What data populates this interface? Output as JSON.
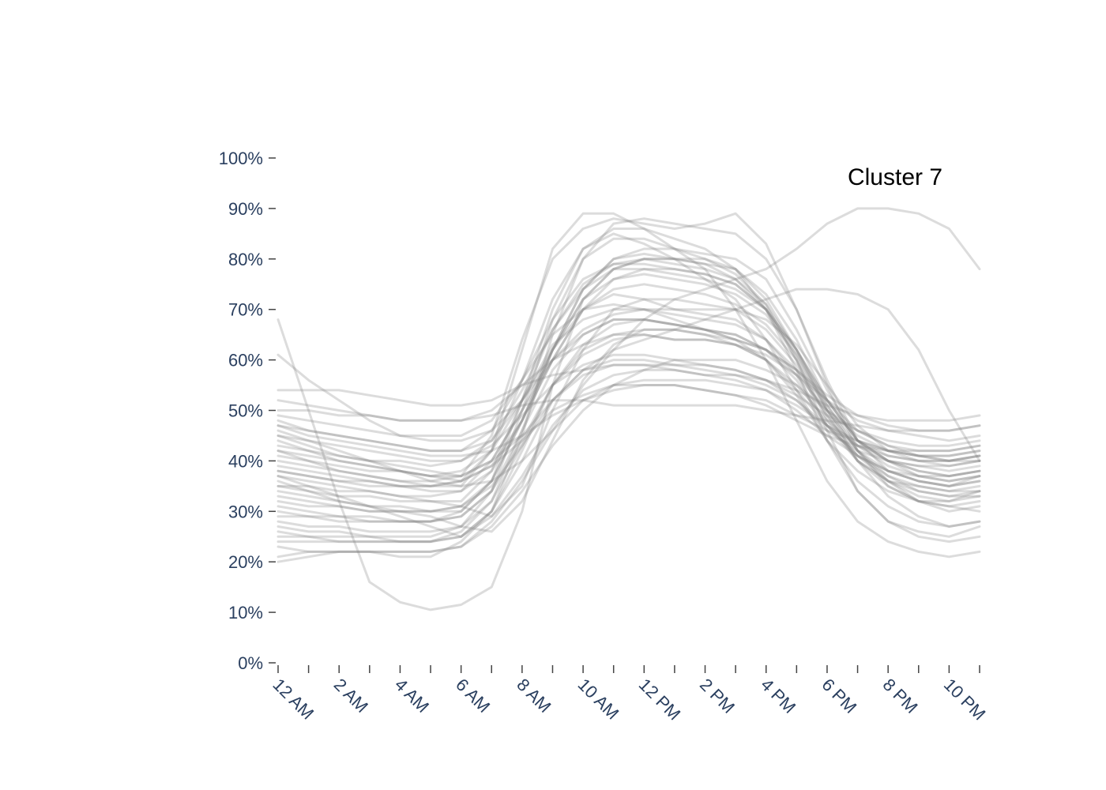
{
  "chart_data": {
    "type": "line",
    "annotation": "Cluster 7",
    "x_tick_labels": [
      "12 AM",
      "2 AM",
      "4 AM",
      "6 AM",
      "8 AM",
      "10 AM",
      "12 PM",
      "2 PM",
      "4 PM",
      "6 PM",
      "8 PM",
      "10 PM"
    ],
    "y_tick_labels": [
      "0%",
      "10%",
      "20%",
      "30%",
      "40%",
      "50%",
      "60%",
      "70%",
      "80%",
      "90%",
      "100%"
    ],
    "xlim": [
      0,
      23
    ],
    "ylim": [
      0,
      100
    ],
    "grid": false,
    "legend": "none",
    "colors": {
      "line": "#808080",
      "tick_label": "#2a3f5f",
      "tick_mark": "#444444"
    },
    "x_hours": [
      0,
      1,
      2,
      3,
      4,
      5,
      6,
      7,
      8,
      9,
      10,
      11,
      12,
      13,
      14,
      15,
      16,
      17,
      18,
      19,
      20,
      21,
      22,
      23
    ],
    "series": [
      {
        "values": [
          48,
          46,
          45,
          44,
          43,
          42,
          42,
          44,
          52,
          62,
          74,
          80,
          82,
          82,
          81,
          80,
          76,
          66,
          54,
          44,
          41,
          40,
          40,
          41
        ]
      },
      {
        "values": [
          45,
          43,
          41,
          40,
          39,
          38,
          37,
          40,
          50,
          62,
          72,
          78,
          80,
          80,
          79,
          78,
          73,
          64,
          52,
          44,
          40,
          39,
          39,
          40
        ]
      },
      {
        "values": [
          42,
          41,
          40,
          39,
          38,
          37,
          36,
          39,
          48,
          60,
          70,
          76,
          78,
          78,
          77,
          75,
          70,
          61,
          50,
          42,
          38,
          37,
          37,
          38
        ]
      },
      {
        "values": [
          38,
          37,
          36,
          35,
          35,
          35,
          36,
          42,
          56,
          72,
          82,
          85,
          83,
          80,
          76,
          72,
          64,
          54,
          44,
          38,
          34,
          32,
          32,
          34
        ]
      },
      {
        "values": [
          37,
          35,
          33,
          31,
          29,
          27,
          25,
          30,
          45,
          65,
          80,
          87,
          88,
          87,
          86,
          85,
          80,
          70,
          56,
          44,
          38,
          36,
          35,
          37
        ]
      },
      {
        "values": [
          35,
          34,
          33,
          33,
          32,
          32,
          32,
          38,
          52,
          66,
          75,
          79,
          80,
          79,
          78,
          76,
          70,
          60,
          48,
          40,
          36,
          35,
          34,
          35
        ]
      },
      {
        "values": [
          33,
          32,
          31,
          30,
          30,
          30,
          31,
          36,
          48,
          62,
          70,
          73,
          72,
          70,
          69,
          68,
          64,
          57,
          47,
          40,
          36,
          34,
          33,
          33
        ]
      },
      {
        "values": [
          30,
          29,
          29,
          28,
          28,
          28,
          29,
          34,
          46,
          58,
          65,
          68,
          68,
          67,
          66,
          65,
          62,
          56,
          47,
          41,
          37,
          35,
          34,
          34
        ]
      },
      {
        "values": [
          28,
          27,
          27,
          26,
          26,
          26,
          27,
          32,
          43,
          55,
          62,
          65,
          65,
          64,
          64,
          63,
          60,
          55,
          48,
          43,
          40,
          38,
          37,
          38
        ]
      },
      {
        "values": [
          26,
          25,
          25,
          25,
          24,
          24,
          25,
          30,
          40,
          52,
          58,
          60,
          60,
          59,
          59,
          58,
          56,
          52,
          46,
          42,
          40,
          39,
          38,
          39
        ]
      },
      {
        "values": [
          24,
          24,
          24,
          24,
          24,
          24,
          25,
          29,
          37,
          47,
          54,
          57,
          58,
          58,
          57,
          57,
          55,
          52,
          47,
          43,
          41,
          40,
          40,
          41
        ]
      },
      {
        "values": [
          21,
          22,
          22,
          22,
          22,
          22,
          23,
          28,
          36,
          46,
          52,
          55,
          56,
          56,
          56,
          55,
          54,
          51,
          47,
          44,
          42,
          41,
          41,
          42
        ]
      },
      {
        "values": [
          52,
          51,
          50,
          49,
          48,
          48,
          48,
          50,
          55,
          60,
          63,
          65,
          66,
          66,
          65,
          64,
          62,
          58,
          53,
          49,
          47,
          46,
          46,
          47
        ]
      },
      {
        "values": [
          54,
          54,
          54,
          53,
          52,
          51,
          51,
          52,
          55,
          57,
          58,
          59,
          59,
          59,
          58,
          57,
          56,
          54,
          51,
          49,
          48,
          48,
          48,
          49
        ]
      },
      {
        "values": [
          50,
          50,
          49,
          49,
          48,
          48,
          48,
          49,
          51,
          52,
          52,
          51,
          51,
          51,
          51,
          51,
          50,
          49,
          48,
          47,
          46,
          46,
          46,
          47
        ]
      },
      {
        "values": [
          68,
          50,
          32,
          16,
          12,
          10.5,
          11.5,
          15,
          30,
          55,
          72,
          78,
          80,
          80,
          80,
          78,
          72,
          62,
          52,
          44,
          40,
          38,
          37,
          38
        ]
      },
      {
        "values": [
          61,
          56,
          52,
          48,
          45,
          44,
          44,
          46,
          52,
          60,
          66,
          69,
          70,
          70,
          70,
          70,
          68,
          63,
          55,
          47,
          42,
          40,
          39,
          40
        ]
      },
      {
        "values": [
          46,
          44,
          42,
          40,
          38,
          36,
          35,
          36,
          40,
          46,
          55,
          62,
          68,
          72,
          74,
          76,
          78,
          82,
          87,
          90,
          90,
          89,
          86,
          78
        ]
      },
      {
        "values": [
          42,
          40,
          38,
          37,
          36,
          36,
          37,
          40,
          45,
          52,
          58,
          62,
          64,
          66,
          68,
          70,
          72,
          74,
          74,
          73,
          70,
          62,
          50,
          40
        ]
      },
      {
        "values": [
          40,
          39,
          38,
          37,
          36,
          35,
          35,
          42,
          62,
          82,
          89,
          89,
          86,
          82,
          78,
          70,
          60,
          48,
          36,
          28,
          24,
          22,
          21,
          22
        ]
      },
      {
        "values": [
          44,
          42,
          40,
          39,
          38,
          37,
          37,
          45,
          64,
          80,
          86,
          88,
          87,
          86,
          87,
          89,
          83,
          70,
          55,
          42,
          35,
          32,
          31,
          30
        ]
      },
      {
        "values": [
          36,
          34,
          32,
          31,
          31,
          30,
          30,
          36,
          52,
          70,
          82,
          86,
          86,
          84,
          82,
          78,
          70,
          58,
          44,
          34,
          28,
          26,
          25,
          27
        ]
      },
      {
        "values": [
          27,
          26,
          26,
          25,
          25,
          25,
          27,
          34,
          50,
          68,
          80,
          84,
          84,
          82,
          80,
          77,
          71,
          60,
          46,
          34,
          28,
          25,
          24,
          25
        ]
      },
      {
        "values": [
          25,
          25,
          24,
          24,
          24,
          24,
          26,
          32,
          46,
          62,
          74,
          80,
          81,
          80,
          79,
          76,
          71,
          62,
          50,
          40,
          33,
          29,
          27,
          28
        ]
      },
      {
        "values": [
          31,
          30,
          29,
          29,
          28,
          28,
          30,
          36,
          48,
          62,
          72,
          76,
          77,
          76,
          75,
          73,
          69,
          61,
          51,
          42,
          36,
          32,
          30,
          31
        ]
      },
      {
        "values": [
          39,
          38,
          37,
          36,
          35,
          34,
          34,
          38,
          48,
          60,
          70,
          74,
          75,
          74,
          73,
          71,
          67,
          60,
          50,
          42,
          37,
          34,
          33,
          34
        ]
      },
      {
        "values": [
          45,
          44,
          43,
          42,
          41,
          40,
          40,
          44,
          54,
          66,
          74,
          78,
          78,
          77,
          76,
          74,
          70,
          62,
          52,
          44,
          40,
          37,
          36,
          37
        ]
      },
      {
        "values": [
          47,
          46,
          45,
          44,
          43,
          42,
          42,
          46,
          56,
          68,
          76,
          79,
          79,
          78,
          77,
          75,
          70,
          62,
          51,
          43,
          39,
          37,
          36,
          37
        ]
      },
      {
        "values": [
          35,
          35,
          34,
          34,
          33,
          33,
          34,
          40,
          50,
          60,
          65,
          68,
          68,
          67,
          66,
          65,
          62,
          57,
          50,
          45,
          42,
          41,
          40,
          41
        ]
      },
      {
        "values": [
          29,
          29,
          28,
          28,
          28,
          28,
          29,
          34,
          44,
          55,
          61,
          64,
          65,
          64,
          64,
          63,
          61,
          57,
          52,
          48,
          46,
          45,
          44,
          45
        ]
      },
      {
        "values": [
          34,
          33,
          32,
          31,
          30,
          29,
          27,
          26,
          32,
          44,
          56,
          63,
          66,
          66,
          65,
          63,
          60,
          54,
          47,
          41,
          38,
          36,
          35,
          36
        ]
      },
      {
        "values": [
          23,
          22,
          22,
          22,
          21,
          21,
          24,
          30,
          42,
          55,
          63,
          67,
          68,
          67,
          66,
          64,
          60,
          53,
          44,
          36,
          31,
          28,
          27,
          28
        ]
      },
      {
        "values": [
          41,
          40,
          39,
          38,
          38,
          37,
          38,
          42,
          52,
          63,
          68,
          70,
          70,
          69,
          68,
          67,
          64,
          58,
          49,
          41,
          36,
          33,
          32,
          33
        ]
      },
      {
        "values": [
          49,
          48,
          47,
          46,
          45,
          45,
          45,
          48,
          56,
          65,
          70,
          71,
          70,
          68,
          66,
          64,
          62,
          58,
          52,
          46,
          43,
          42,
          42,
          43
        ]
      },
      {
        "values": [
          37,
          36,
          35,
          34,
          33,
          32,
          31,
          29,
          35,
          50,
          62,
          70,
          72,
          72,
          71,
          70,
          66,
          59,
          49,
          40,
          35,
          32,
          31,
          32
        ]
      },
      {
        "values": [
          43,
          42,
          41,
          40,
          40,
          39,
          40,
          43,
          49,
          55,
          59,
          61,
          61,
          60,
          59,
          58,
          56,
          53,
          49,
          46,
          44,
          43,
          43,
          44
        ]
      },
      {
        "values": [
          32,
          31,
          31,
          30,
          30,
          30,
          31,
          35,
          43,
          52,
          57,
          59,
          59,
          58,
          57,
          56,
          54,
          50,
          45,
          41,
          38,
          36,
          35,
          36
        ]
      },
      {
        "values": [
          20,
          21,
          22,
          22,
          22,
          22,
          23,
          27,
          34,
          43,
          50,
          55,
          58,
          60,
          60,
          60,
          58,
          55,
          50,
          46,
          43,
          41,
          40,
          40
        ]
      },
      {
        "values": [
          47,
          45,
          44,
          43,
          42,
          41,
          41,
          42,
          45,
          49,
          52,
          54,
          55,
          55,
          54,
          53,
          51,
          48,
          45,
          43,
          42,
          42,
          42,
          43
        ]
      },
      {
        "values": [
          38,
          37,
          36,
          36,
          35,
          35,
          36,
          39,
          44,
          50,
          53,
          55,
          55,
          55,
          54,
          53,
          52,
          49,
          46,
          44,
          42,
          41,
          41,
          42
        ]
      }
    ]
  }
}
